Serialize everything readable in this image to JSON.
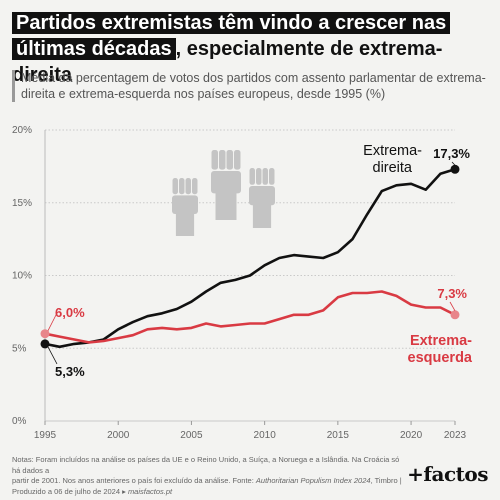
{
  "title": {
    "highlight_line1": "Partidos extremistas têm vindo a crescer nas",
    "highlight_line2": "últimas décadas",
    "rest": ", especialmente de extrema-direita"
  },
  "subtitle": "Média da percentagem de votos dos partidos com assento parlamentar de extrema-direita e extrema-esquerda nos países europeus, desde 1995 (%)",
  "notes": {
    "line1": "Notas: Foram incluídos na análise os países da UE e o Reino Unido, a Suíça, a Noruega e a Islândia. Na Croácia só há dados a",
    "line2_prefix": "partir de 2001. Nos anos anteriores o país foi excluído da análise. Fonte: ",
    "source": "Authoritarian Populism Index 2024",
    "line2_suffix": ", Timbro |",
    "line3_prefix": "Produzido a 06 de julho de 2024 ▸ ",
    "site": "maisfactos.pt"
  },
  "logo": "+factos",
  "icon": "raised-fists-icon",
  "colors": {
    "far_right": "#111111",
    "far_left": "#d93a43",
    "grid": "#c9c9c9",
    "background": "#f3f3f1"
  },
  "chart_data": {
    "type": "line",
    "xlim": [
      1995,
      2023
    ],
    "ylim": [
      0,
      20
    ],
    "xticks": [
      1995,
      2000,
      2005,
      2010,
      2015,
      2020,
      2023
    ],
    "yticks": [
      0,
      5,
      10,
      15,
      20
    ],
    "ytick_labels": [
      "0%",
      "5%",
      "10%",
      "15%",
      "20%"
    ],
    "grid": true,
    "series": [
      {
        "name": "Extrema-direita",
        "name_lines": [
          "Extrema-",
          "direita"
        ],
        "color": "#111111",
        "start_label": "5,3%",
        "end_label": "17,3%",
        "points": [
          [
            1995,
            5.3
          ],
          [
            1996,
            5.1
          ],
          [
            1997,
            5.3
          ],
          [
            1998,
            5.4
          ],
          [
            1999,
            5.6
          ],
          [
            2000,
            6.3
          ],
          [
            2001,
            6.8
          ],
          [
            2002,
            7.2
          ],
          [
            2003,
            7.4
          ],
          [
            2004,
            7.7
          ],
          [
            2005,
            8.2
          ],
          [
            2006,
            8.9
          ],
          [
            2007,
            9.5
          ],
          [
            2008,
            9.7
          ],
          [
            2009,
            10.0
          ],
          [
            2010,
            10.7
          ],
          [
            2011,
            11.2
          ],
          [
            2012,
            11.4
          ],
          [
            2013,
            11.3
          ],
          [
            2014,
            11.2
          ],
          [
            2015,
            11.6
          ],
          [
            2016,
            12.5
          ],
          [
            2017,
            14.2
          ],
          [
            2018,
            15.8
          ],
          [
            2019,
            16.2
          ],
          [
            2020,
            16.3
          ],
          [
            2021,
            15.9
          ],
          [
            2022,
            17.0
          ],
          [
            2023,
            17.3
          ]
        ]
      },
      {
        "name": "Extrema-esquerda",
        "name_lines": [
          "Extrema-",
          "esquerda"
        ],
        "color": "#d93a43",
        "start_label": "6,0%",
        "end_label": "7,3%",
        "points": [
          [
            1995,
            6.0
          ],
          [
            1996,
            5.8
          ],
          [
            1997,
            5.6
          ],
          [
            1998,
            5.4
          ],
          [
            1999,
            5.5
          ],
          [
            2000,
            5.7
          ],
          [
            2001,
            5.9
          ],
          [
            2002,
            6.3
          ],
          [
            2003,
            6.4
          ],
          [
            2004,
            6.3
          ],
          [
            2005,
            6.4
          ],
          [
            2006,
            6.7
          ],
          [
            2007,
            6.5
          ],
          [
            2008,
            6.6
          ],
          [
            2009,
            6.7
          ],
          [
            2010,
            6.7
          ],
          [
            2011,
            7.0
          ],
          [
            2012,
            7.3
          ],
          [
            2013,
            7.3
          ],
          [
            2014,
            7.6
          ],
          [
            2015,
            8.5
          ],
          [
            2016,
            8.8
          ],
          [
            2017,
            8.8
          ],
          [
            2018,
            8.9
          ],
          [
            2019,
            8.6
          ],
          [
            2020,
            8.0
          ],
          [
            2021,
            7.8
          ],
          [
            2022,
            7.8
          ],
          [
            2023,
            7.3
          ]
        ]
      }
    ]
  }
}
